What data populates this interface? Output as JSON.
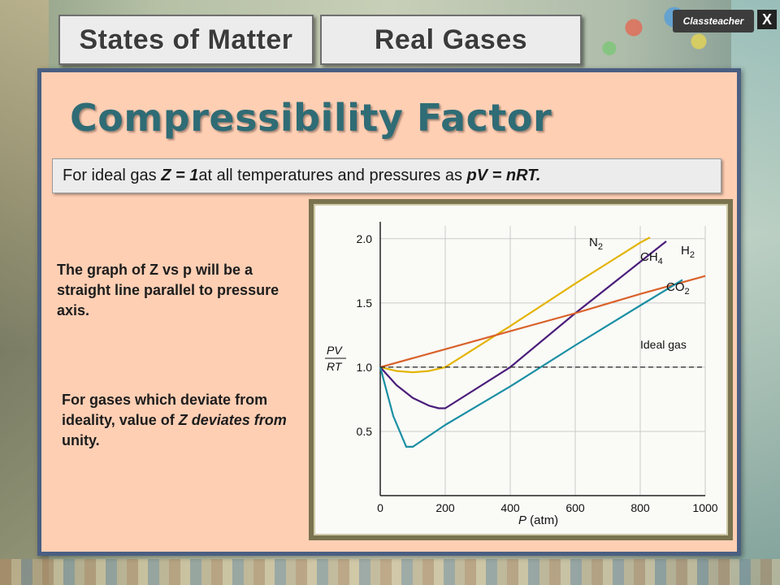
{
  "tabs": {
    "tab1": "States of Matter",
    "tab2": "Real Gases"
  },
  "brand": {
    "label": "Classteacher"
  },
  "close_label": "X",
  "slide": {
    "title": "Compressibility Factor",
    "definition": {
      "prefix": "For ideal gas ",
      "emph1": "Z = 1",
      "middle": " at all temperatures and pressures as ",
      "emph2": "pV = nRT."
    },
    "text1": "The graph of Z vs p will be a straight line parallel to pressure axis.",
    "text2": {
      "part1": "For gases which deviate from ideality, value of ",
      "emph1": "Z deviates from",
      "part2": " unity."
    }
  },
  "chart_data": {
    "type": "line",
    "xlabel": "P (atm)",
    "ylabel": "PV/RT",
    "x_ticks": [
      0,
      200,
      400,
      600,
      800,
      1000
    ],
    "y_ticks": [
      0.5,
      1.0,
      1.5,
      2.0
    ],
    "xlim": [
      0,
      1000
    ],
    "ylim": [
      0,
      2.1
    ],
    "grid": true,
    "series": [
      {
        "name": "N2",
        "color": "#e3b400",
        "x": [
          0,
          50,
          100,
          150,
          200,
          400,
          600,
          800,
          830
        ],
        "y": [
          1.0,
          0.97,
          0.96,
          0.97,
          1.0,
          1.32,
          1.65,
          1.97,
          2.01
        ]
      },
      {
        "name": "CH4",
        "color": "#4a1d7a",
        "x": [
          0,
          50,
          100,
          150,
          180,
          200,
          400,
          600,
          800,
          880
        ],
        "y": [
          1.0,
          0.86,
          0.76,
          0.7,
          0.68,
          0.68,
          1.0,
          1.42,
          1.82,
          1.98
        ]
      },
      {
        "name": "H2",
        "color": "#d9622b",
        "x": [
          0,
          200,
          400,
          600,
          800,
          1000
        ],
        "y": [
          1.0,
          1.14,
          1.28,
          1.42,
          1.57,
          1.71
        ]
      },
      {
        "name": "CO2",
        "color": "#1a8fa3",
        "x": [
          0,
          40,
          80,
          100,
          200,
          400,
          600,
          800,
          930
        ],
        "y": [
          1.0,
          0.62,
          0.38,
          0.38,
          0.55,
          0.85,
          1.17,
          1.48,
          1.68
        ]
      },
      {
        "name": "Ideal gas",
        "color": "#222222",
        "dashed": true,
        "x": [
          0,
          1000
        ],
        "y": [
          1.0,
          1.0
        ]
      }
    ],
    "labels": {
      "n2": "N",
      "n2_sub": "2",
      "ch4": "CH",
      "ch4_sub": "4",
      "h2": "H",
      "h2_sub": "2",
      "co2": "CO",
      "co2_sub": "2",
      "ideal": "Ideal gas",
      "pv": "PV",
      "rt": "RT",
      "p": "P",
      "atm": " (atm)"
    }
  }
}
